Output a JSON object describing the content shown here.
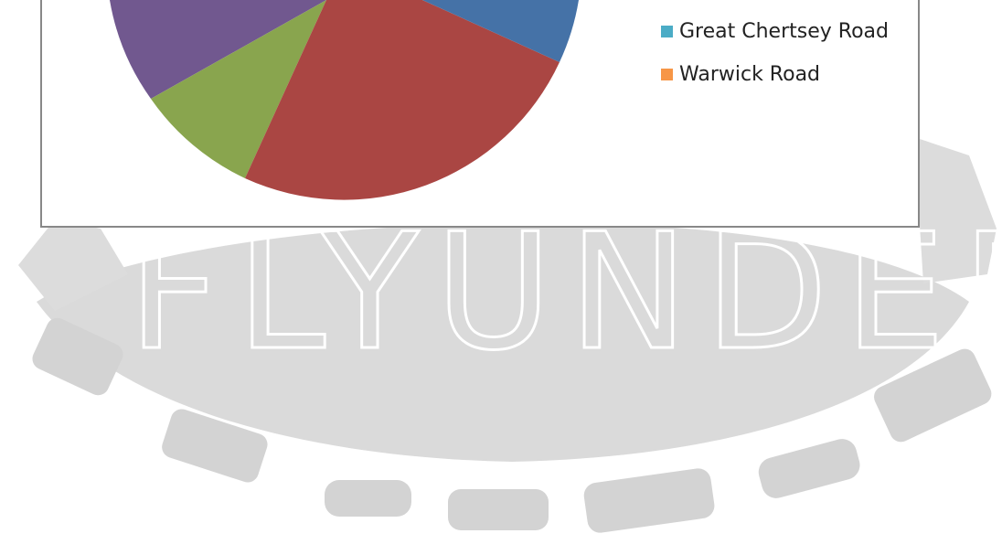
{
  "legend": [
    "Great Chertsey Road",
    "Warwick Road"
  ],
  "watermark": "FLYUNDER"
}
